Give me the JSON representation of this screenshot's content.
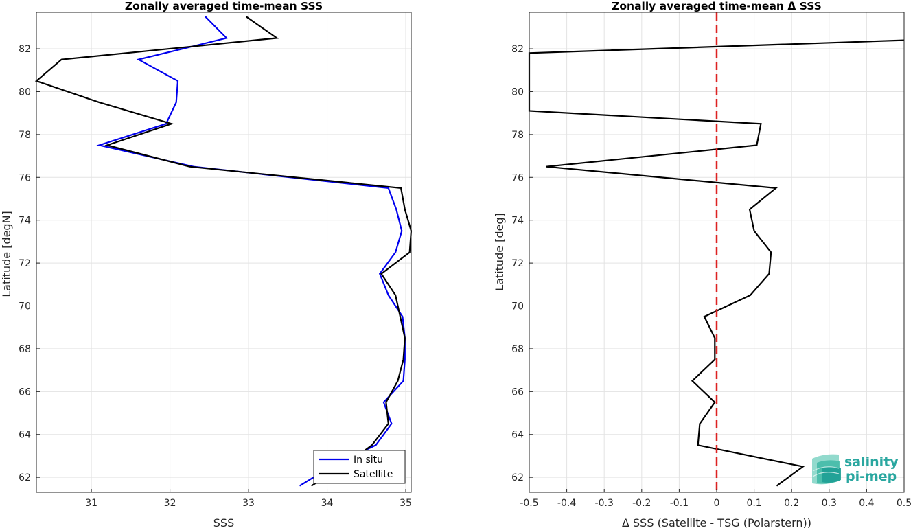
{
  "chart_data": [
    {
      "type": "line",
      "title": "Zonally averaged time-mean SSS",
      "xlabel": "SSS",
      "ylabel": "Latitude [degN]",
      "xlim": [
        30.3,
        35.07
      ],
      "ylim": [
        61.3,
        83.7
      ],
      "xticks": [
        31,
        32,
        33,
        34,
        35
      ],
      "yticks": [
        62,
        64,
        66,
        68,
        70,
        72,
        74,
        76,
        78,
        80,
        82
      ],
      "grid": true,
      "legend": "bottom-right",
      "series": [
        {
          "name": "In situ",
          "color": "#0000ee",
          "points": [
            [
              33.65,
              61.6
            ],
            [
              34.05,
              62.5
            ],
            [
              34.62,
              63.5
            ],
            [
              34.82,
              64.5
            ],
            [
              34.72,
              65.5
            ],
            [
              34.97,
              66.5
            ],
            [
              34.99,
              67.5
            ],
            [
              34.99,
              68.5
            ],
            [
              34.96,
              69.5
            ],
            [
              34.78,
              70.5
            ],
            [
              34.67,
              71.5
            ],
            [
              34.87,
              72.5
            ],
            [
              34.95,
              73.5
            ],
            [
              34.88,
              74.5
            ],
            [
              34.78,
              75.5
            ],
            [
              32.3,
              76.5
            ],
            [
              31.1,
              77.5
            ],
            [
              31.95,
              78.5
            ],
            [
              32.08,
              79.5
            ],
            [
              32.1,
              80.5
            ],
            [
              31.6,
              81.5
            ],
            [
              32.72,
              82.5
            ],
            [
              32.45,
              83.5
            ]
          ]
        },
        {
          "name": "Satellite",
          "color": "#000000",
          "points": [
            [
              33.8,
              61.6
            ],
            [
              34.2,
              62.5
            ],
            [
              34.57,
              63.5
            ],
            [
              34.78,
              64.5
            ],
            [
              34.75,
              65.5
            ],
            [
              34.9,
              66.5
            ],
            [
              34.97,
              67.5
            ],
            [
              34.99,
              68.5
            ],
            [
              34.93,
              69.5
            ],
            [
              34.87,
              70.5
            ],
            [
              34.69,
              71.5
            ],
            [
              35.05,
              72.5
            ],
            [
              35.07,
              73.5
            ],
            [
              34.99,
              74.5
            ],
            [
              34.94,
              75.5
            ],
            [
              32.25,
              76.5
            ],
            [
              31.2,
              77.5
            ],
            [
              32.02,
              78.5
            ],
            [
              31.1,
              79.5
            ],
            [
              30.3,
              80.5
            ],
            [
              30.62,
              81.5
            ],
            [
              33.36,
              82.5
            ],
            [
              32.97,
              83.5
            ]
          ]
        }
      ]
    },
    {
      "type": "line",
      "title": "Zonally averaged time-mean Δ SSS",
      "xlabel": "Δ SSS (Satellite - TSG (Polarstern))",
      "ylabel": "Latitude [deg]",
      "xlim": [
        -0.5,
        0.5
      ],
      "ylim": [
        61.3,
        83.7
      ],
      "xticks": [
        -0.5,
        -0.4,
        -0.3,
        -0.2,
        -0.1,
        0,
        0.1,
        0.2,
        0.3,
        0.4,
        0.5
      ],
      "xtick_labels": [
        "-0.5",
        "-0.4",
        "-0.3",
        "-0.2",
        "-0.1",
        "0",
        "0.1",
        "0.2",
        "0.3",
        "0.4",
        "0.5"
      ],
      "yticks": [
        62,
        64,
        66,
        68,
        70,
        72,
        74,
        76,
        78,
        80,
        82
      ],
      "grid": true,
      "reference_line": {
        "x": 0,
        "color": "#dd2222",
        "style": "dashed"
      },
      "series": [
        {
          "color": "#000000",
          "points": [
            [
              0.16,
              61.6
            ],
            [
              0.23,
              62.5
            ],
            [
              -0.05,
              63.5
            ],
            [
              -0.045,
              64.5
            ],
            [
              -0.005,
              65.5
            ],
            [
              -0.065,
              66.5
            ],
            [
              -0.005,
              67.5
            ],
            [
              -0.005,
              68.5
            ],
            [
              -0.033,
              69.5
            ],
            [
              0.09,
              70.5
            ],
            [
              0.14,
              71.5
            ],
            [
              0.145,
              72.5
            ],
            [
              0.1,
              73.5
            ],
            [
              0.088,
              74.5
            ],
            [
              0.158,
              75.5
            ],
            [
              -0.455,
              76.5
            ],
            [
              0.107,
              77.5
            ],
            [
              0.118,
              78.5
            ],
            [
              -0.5,
              79.1
            ],
            [
              -0.5,
              81.8
            ],
            [
              0.5,
              82.4
            ]
          ]
        }
      ]
    }
  ],
  "logo": {
    "line1": "salinity",
    "line2": "pi-mep"
  }
}
